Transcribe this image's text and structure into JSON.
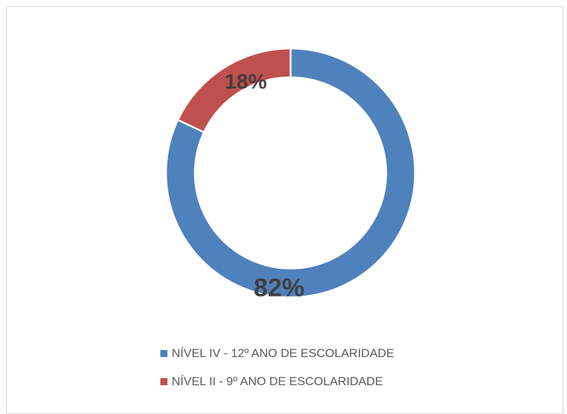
{
  "chart_data": {
    "type": "pie",
    "variant": "donut",
    "categories": [
      "NÍVEL IV - 12º ANO DE ESCOLARIDADE",
      "NÍVEL II - 9º ANO DE ESCOLARIDADE"
    ],
    "values": [
      82,
      18
    ],
    "value_labels": [
      "82%",
      "18%"
    ],
    "colors": [
      "#4F81BD",
      "#C0504D"
    ],
    "legend_position": "bottom"
  }
}
